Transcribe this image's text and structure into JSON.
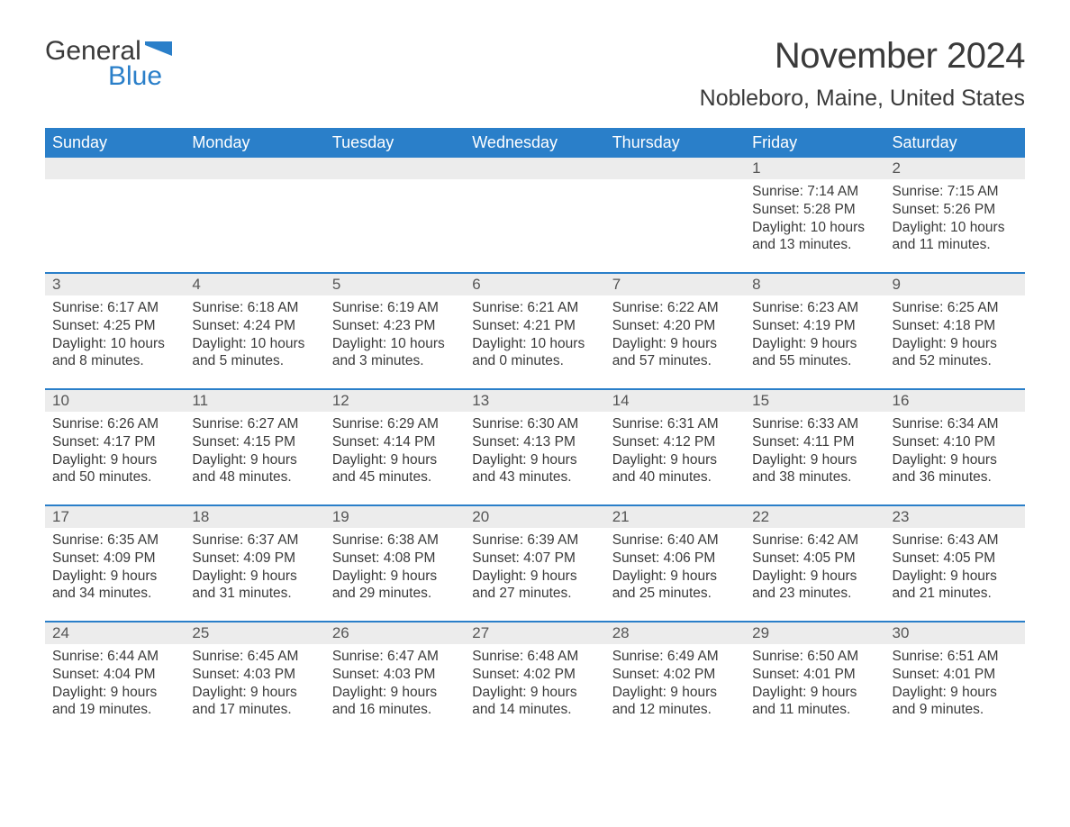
{
  "logo": {
    "text1": "General",
    "text2": "Blue",
    "flag_color": "#2a7fc9"
  },
  "title": "November 2024",
  "location": "Nobleboro, Maine, United States",
  "colors": {
    "header_bg": "#2a7fc9",
    "header_fg": "#ffffff",
    "daynum_bg": "#ececec",
    "text": "#3a3a3a",
    "accent": "#2a7fc9"
  },
  "typography": {
    "title_fontsize": 40,
    "location_fontsize": 25,
    "header_fontsize": 18,
    "body_fontsize": 15.5
  },
  "daynames": [
    "Sunday",
    "Monday",
    "Tuesday",
    "Wednesday",
    "Thursday",
    "Friday",
    "Saturday"
  ],
  "labels": {
    "sunrise": "Sunrise:",
    "sunset": "Sunset:",
    "daylight": "Daylight:"
  },
  "weeks": [
    [
      {
        "blank": true
      },
      {
        "blank": true
      },
      {
        "blank": true
      },
      {
        "blank": true
      },
      {
        "blank": true
      },
      {
        "day": "1",
        "sunrise": "7:14 AM",
        "sunset": "5:28 PM",
        "daylight": "10 hours and 13 minutes."
      },
      {
        "day": "2",
        "sunrise": "7:15 AM",
        "sunset": "5:26 PM",
        "daylight": "10 hours and 11 minutes."
      }
    ],
    [
      {
        "day": "3",
        "sunrise": "6:17 AM",
        "sunset": "4:25 PM",
        "daylight": "10 hours and 8 minutes."
      },
      {
        "day": "4",
        "sunrise": "6:18 AM",
        "sunset": "4:24 PM",
        "daylight": "10 hours and 5 minutes."
      },
      {
        "day": "5",
        "sunrise": "6:19 AM",
        "sunset": "4:23 PM",
        "daylight": "10 hours and 3 minutes."
      },
      {
        "day": "6",
        "sunrise": "6:21 AM",
        "sunset": "4:21 PM",
        "daylight": "10 hours and 0 minutes."
      },
      {
        "day": "7",
        "sunrise": "6:22 AM",
        "sunset": "4:20 PM",
        "daylight": "9 hours and 57 minutes."
      },
      {
        "day": "8",
        "sunrise": "6:23 AM",
        "sunset": "4:19 PM",
        "daylight": "9 hours and 55 minutes."
      },
      {
        "day": "9",
        "sunrise": "6:25 AM",
        "sunset": "4:18 PM",
        "daylight": "9 hours and 52 minutes."
      }
    ],
    [
      {
        "day": "10",
        "sunrise": "6:26 AM",
        "sunset": "4:17 PM",
        "daylight": "9 hours and 50 minutes."
      },
      {
        "day": "11",
        "sunrise": "6:27 AM",
        "sunset": "4:15 PM",
        "daylight": "9 hours and 48 minutes."
      },
      {
        "day": "12",
        "sunrise": "6:29 AM",
        "sunset": "4:14 PM",
        "daylight": "9 hours and 45 minutes."
      },
      {
        "day": "13",
        "sunrise": "6:30 AM",
        "sunset": "4:13 PM",
        "daylight": "9 hours and 43 minutes."
      },
      {
        "day": "14",
        "sunrise": "6:31 AM",
        "sunset": "4:12 PM",
        "daylight": "9 hours and 40 minutes."
      },
      {
        "day": "15",
        "sunrise": "6:33 AM",
        "sunset": "4:11 PM",
        "daylight": "9 hours and 38 minutes."
      },
      {
        "day": "16",
        "sunrise": "6:34 AM",
        "sunset": "4:10 PM",
        "daylight": "9 hours and 36 minutes."
      }
    ],
    [
      {
        "day": "17",
        "sunrise": "6:35 AM",
        "sunset": "4:09 PM",
        "daylight": "9 hours and 34 minutes."
      },
      {
        "day": "18",
        "sunrise": "6:37 AM",
        "sunset": "4:09 PM",
        "daylight": "9 hours and 31 minutes."
      },
      {
        "day": "19",
        "sunrise": "6:38 AM",
        "sunset": "4:08 PM",
        "daylight": "9 hours and 29 minutes."
      },
      {
        "day": "20",
        "sunrise": "6:39 AM",
        "sunset": "4:07 PM",
        "daylight": "9 hours and 27 minutes."
      },
      {
        "day": "21",
        "sunrise": "6:40 AM",
        "sunset": "4:06 PM",
        "daylight": "9 hours and 25 minutes."
      },
      {
        "day": "22",
        "sunrise": "6:42 AM",
        "sunset": "4:05 PM",
        "daylight": "9 hours and 23 minutes."
      },
      {
        "day": "23",
        "sunrise": "6:43 AM",
        "sunset": "4:05 PM",
        "daylight": "9 hours and 21 minutes."
      }
    ],
    [
      {
        "day": "24",
        "sunrise": "6:44 AM",
        "sunset": "4:04 PM",
        "daylight": "9 hours and 19 minutes."
      },
      {
        "day": "25",
        "sunrise": "6:45 AM",
        "sunset": "4:03 PM",
        "daylight": "9 hours and 17 minutes."
      },
      {
        "day": "26",
        "sunrise": "6:47 AM",
        "sunset": "4:03 PM",
        "daylight": "9 hours and 16 minutes."
      },
      {
        "day": "27",
        "sunrise": "6:48 AM",
        "sunset": "4:02 PM",
        "daylight": "9 hours and 14 minutes."
      },
      {
        "day": "28",
        "sunrise": "6:49 AM",
        "sunset": "4:02 PM",
        "daylight": "9 hours and 12 minutes."
      },
      {
        "day": "29",
        "sunrise": "6:50 AM",
        "sunset": "4:01 PM",
        "daylight": "9 hours and 11 minutes."
      },
      {
        "day": "30",
        "sunrise": "6:51 AM",
        "sunset": "4:01 PM",
        "daylight": "9 hours and 9 minutes."
      }
    ]
  ]
}
